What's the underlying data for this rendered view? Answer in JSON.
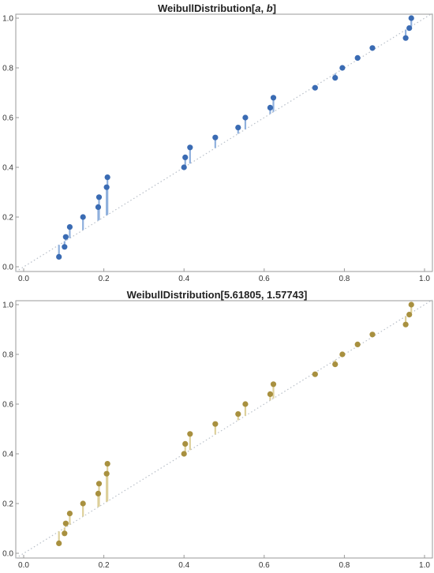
{
  "chart_data": [
    {
      "type": "scatter",
      "title": "WeibullDistribution[a, b]",
      "title_parts": {
        "prefix": "WeibullDistribution[",
        "arg1": "a",
        "sep": ", ",
        "arg2": "b",
        "suffix": "]"
      },
      "xlim": [
        0,
        1
      ],
      "ylim": [
        0,
        1
      ],
      "x_ticks": [
        "0.0",
        "0.2",
        "0.4",
        "0.6",
        "0.8",
        "1.0"
      ],
      "y_ticks": [
        "0.0",
        "0.2",
        "0.4",
        "0.6",
        "0.8",
        "1.0"
      ],
      "reference_line": "y = x (dotted)",
      "marker_color": "#3a6bb3",
      "stem_color": "#8fb0dd",
      "points": [
        {
          "x": 0.088,
          "y": 0.04
        },
        {
          "x": 0.102,
          "y": 0.08
        },
        {
          "x": 0.105,
          "y": 0.12
        },
        {
          "x": 0.115,
          "y": 0.16
        },
        {
          "x": 0.148,
          "y": 0.2
        },
        {
          "x": 0.186,
          "y": 0.24
        },
        {
          "x": 0.188,
          "y": 0.28
        },
        {
          "x": 0.207,
          "y": 0.32
        },
        {
          "x": 0.209,
          "y": 0.36
        },
        {
          "x": 0.4,
          "y": 0.4
        },
        {
          "x": 0.403,
          "y": 0.44
        },
        {
          "x": 0.415,
          "y": 0.48
        },
        {
          "x": 0.478,
          "y": 0.52
        },
        {
          "x": 0.535,
          "y": 0.56
        },
        {
          "x": 0.553,
          "y": 0.6
        },
        {
          "x": 0.615,
          "y": 0.64
        },
        {
          "x": 0.623,
          "y": 0.68
        },
        {
          "x": 0.727,
          "y": 0.72
        },
        {
          "x": 0.777,
          "y": 0.76
        },
        {
          "x": 0.795,
          "y": 0.8
        },
        {
          "x": 0.833,
          "y": 0.84
        },
        {
          "x": 0.87,
          "y": 0.88
        },
        {
          "x": 0.953,
          "y": 0.92
        },
        {
          "x": 0.962,
          "y": 0.96
        },
        {
          "x": 0.967,
          "y": 1.0
        }
      ]
    },
    {
      "type": "scatter",
      "title": "WeibullDistribution[5.61805, 1.57743]",
      "xlim": [
        0,
        1
      ],
      "ylim": [
        0,
        1
      ],
      "x_ticks": [
        "0.0",
        "0.2",
        "0.4",
        "0.6",
        "0.8",
        "1.0"
      ],
      "y_ticks": [
        "0.0",
        "0.2",
        "0.4",
        "0.6",
        "0.8",
        "1.0"
      ],
      "reference_line": "y = x (dotted)",
      "marker_color": "#a8903f",
      "stem_color": "#ddd09a",
      "points": [
        {
          "x": 0.088,
          "y": 0.04
        },
        {
          "x": 0.102,
          "y": 0.08
        },
        {
          "x": 0.105,
          "y": 0.12
        },
        {
          "x": 0.115,
          "y": 0.16
        },
        {
          "x": 0.148,
          "y": 0.2
        },
        {
          "x": 0.186,
          "y": 0.24
        },
        {
          "x": 0.188,
          "y": 0.28
        },
        {
          "x": 0.207,
          "y": 0.32
        },
        {
          "x": 0.209,
          "y": 0.36
        },
        {
          "x": 0.4,
          "y": 0.4
        },
        {
          "x": 0.403,
          "y": 0.44
        },
        {
          "x": 0.415,
          "y": 0.48
        },
        {
          "x": 0.478,
          "y": 0.52
        },
        {
          "x": 0.535,
          "y": 0.56
        },
        {
          "x": 0.553,
          "y": 0.6
        },
        {
          "x": 0.615,
          "y": 0.64
        },
        {
          "x": 0.623,
          "y": 0.68
        },
        {
          "x": 0.727,
          "y": 0.72
        },
        {
          "x": 0.777,
          "y": 0.76
        },
        {
          "x": 0.795,
          "y": 0.8
        },
        {
          "x": 0.833,
          "y": 0.84
        },
        {
          "x": 0.87,
          "y": 0.88
        },
        {
          "x": 0.953,
          "y": 0.92
        },
        {
          "x": 0.962,
          "y": 0.96
        },
        {
          "x": 0.967,
          "y": 1.0
        }
      ]
    }
  ]
}
